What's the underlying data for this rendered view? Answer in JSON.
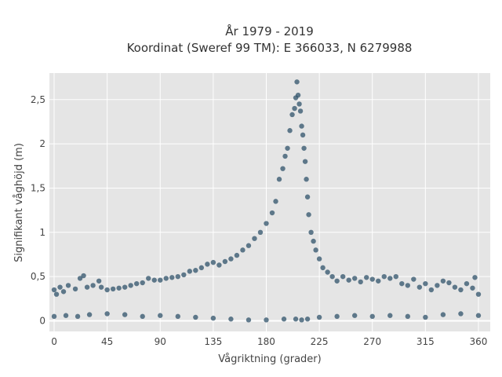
{
  "chart_data": {
    "type": "scatter",
    "title": "År 1979 - 2019",
    "subtitle": "Koordinat (Sweref 99 TM): E 366033, N 6279988",
    "xlabel": "Vågriktning (grader)",
    "ylabel": "Signifikant våghöjd (m)",
    "xlim": [
      -4,
      370
    ],
    "ylim": [
      -0.12,
      2.8
    ],
    "x_ticks": [
      0,
      45,
      90,
      135,
      180,
      225,
      270,
      315,
      360
    ],
    "x_tick_labels": [
      "0",
      "45",
      "90",
      "135",
      "180",
      "225",
      "270",
      "315",
      "360"
    ],
    "y_ticks": [
      0,
      0.5,
      1,
      1.5,
      2,
      2.5
    ],
    "y_tick_labels": [
      "0",
      "0,5",
      "1",
      "1,5",
      "2",
      "2,5"
    ],
    "grid": true,
    "marker_color": "#2f5269",
    "plot_background": "#e5e5e5",
    "series": [
      {
        "name": "",
        "x": [
          0,
          2,
          5,
          8,
          12,
          18,
          22,
          25,
          28,
          33,
          38,
          40,
          45,
          50,
          55,
          60,
          65,
          70,
          75,
          80,
          85,
          90,
          95,
          100,
          105,
          110,
          115,
          120,
          125,
          130,
          135,
          140,
          145,
          150,
          155,
          160,
          165,
          170,
          175,
          180,
          185,
          188,
          191,
          194,
          196,
          198,
          200,
          202,
          204,
          205,
          206,
          207,
          208,
          209,
          210,
          211,
          212,
          213,
          214,
          215,
          216,
          218,
          220,
          222,
          225,
          228,
          232,
          236,
          240,
          245,
          250,
          255,
          260,
          265,
          270,
          275,
          280,
          285,
          290,
          295,
          300,
          305,
          310,
          315,
          320,
          325,
          330,
          335,
          340,
          345,
          350,
          355,
          357,
          360,
          0,
          10,
          20,
          30,
          45,
          60,
          75,
          90,
          105,
          120,
          135,
          150,
          165,
          180,
          195,
          205,
          210,
          215,
          225,
          240,
          255,
          270,
          285,
          300,
          315,
          330,
          345,
          360
        ],
        "y": [
          0.35,
          0.3,
          0.38,
          0.33,
          0.4,
          0.36,
          0.48,
          0.51,
          0.38,
          0.4,
          0.45,
          0.38,
          0.35,
          0.36,
          0.37,
          0.38,
          0.4,
          0.42,
          0.43,
          0.48,
          0.46,
          0.46,
          0.48,
          0.49,
          0.5,
          0.52,
          0.56,
          0.57,
          0.6,
          0.64,
          0.66,
          0.63,
          0.67,
          0.7,
          0.74,
          0.8,
          0.85,
          0.93,
          1.0,
          1.1,
          1.22,
          1.35,
          1.6,
          1.72,
          1.86,
          1.95,
          2.15,
          2.33,
          2.4,
          2.52,
          2.7,
          2.55,
          2.45,
          2.37,
          2.2,
          2.1,
          1.95,
          1.8,
          1.6,
          1.4,
          1.2,
          1.0,
          0.9,
          0.8,
          0.7,
          0.6,
          0.55,
          0.5,
          0.45,
          0.5,
          0.46,
          0.48,
          0.44,
          0.49,
          0.47,
          0.45,
          0.5,
          0.48,
          0.5,
          0.42,
          0.4,
          0.47,
          0.38,
          0.42,
          0.35,
          0.4,
          0.45,
          0.43,
          0.38,
          0.35,
          0.42,
          0.37,
          0.49,
          0.3,
          0.05,
          0.06,
          0.05,
          0.07,
          0.08,
          0.07,
          0.05,
          0.06,
          0.05,
          0.04,
          0.03,
          0.02,
          0.01,
          0.01,
          0.02,
          0.02,
          0.01,
          0.02,
          0.04,
          0.05,
          0.06,
          0.05,
          0.06,
          0.05,
          0.04,
          0.07,
          0.08,
          0.06
        ]
      }
    ]
  }
}
